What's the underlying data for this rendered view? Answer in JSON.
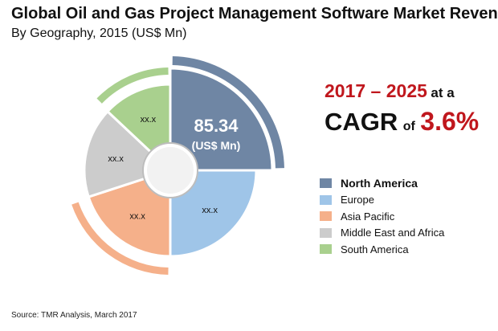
{
  "header": {
    "title": "Global Oil and Gas Project Management Software Market Revenue",
    "subtitle": "By Geography, 2015 (US$ Mn)"
  },
  "center": {
    "value": "85.34",
    "unit": "(US$ Mn)"
  },
  "cagr": {
    "years": "2017 – 2025",
    "at_a": "at a",
    "word": "CAGR",
    "of": "of",
    "value": "3.6%"
  },
  "source": "Source: TMR Analysis, March 2017",
  "chart_data": {
    "type": "pie",
    "categories": [
      "North America",
      "Europe",
      "Asia Pacific",
      "Middle East and Africa",
      "South America"
    ],
    "values": [
      25,
      25,
      20,
      17,
      13
    ],
    "data_labels": [
      "85.34 (US$ Mn)",
      "xx.x",
      "xx.x",
      "xx.x",
      "xx.x"
    ],
    "colors": [
      "#6f86a4",
      "#9fc5e8",
      "#f5b08a",
      "#cccccc",
      "#a9d08e"
    ],
    "legend_placement": "right"
  },
  "legend": {
    "items": [
      {
        "label": "North America",
        "color": "#6f86a4"
      },
      {
        "label": "Europe",
        "color": "#9fc5e8"
      },
      {
        "label": "Asia Pacific",
        "color": "#f5b08a"
      },
      {
        "label": "Middle East and Africa",
        "color": "#cccccc"
      },
      {
        "label": "South America",
        "color": "#a9d08e"
      }
    ]
  }
}
